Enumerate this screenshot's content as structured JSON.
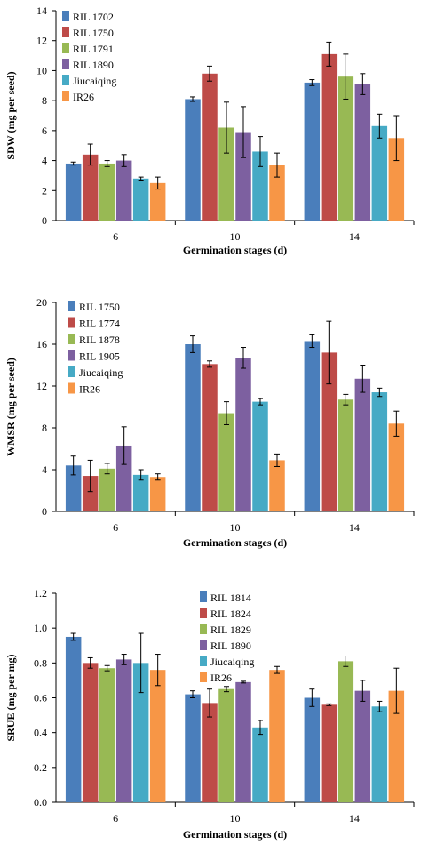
{
  "chart_data": [
    {
      "type": "bar",
      "ylabel": "SDW (mg per seed)",
      "xlabel": "Germination  stages (d)",
      "ylim": [
        0,
        14
      ],
      "yticks": [
        0,
        2,
        4,
        6,
        8,
        10,
        12,
        14
      ],
      "categories": [
        "6",
        "10",
        "14"
      ],
      "grid": false,
      "legend_position": "top-left",
      "series": [
        {
          "name": "RIL  1702",
          "color": "#4a7ebb",
          "values": [
            3.8,
            8.1,
            9.2
          ],
          "errors": [
            0.1,
            0.15,
            0.2
          ]
        },
        {
          "name": "RIL  1750",
          "color": "#be4b48",
          "values": [
            4.4,
            9.8,
            11.1
          ],
          "errors": [
            0.7,
            0.5,
            0.8
          ]
        },
        {
          "name": "RIL  1791",
          "color": "#98b954",
          "values": [
            3.8,
            6.2,
            9.6
          ],
          "errors": [
            0.2,
            1.7,
            1.5
          ]
        },
        {
          "name": "RIL  1890",
          "color": "#7d60a0",
          "values": [
            4.0,
            5.9,
            9.1
          ],
          "errors": [
            0.4,
            1.7,
            0.7
          ]
        },
        {
          "name": "Jiucaiqing",
          "color": "#46aac5",
          "values": [
            2.8,
            4.6,
            6.3
          ],
          "errors": [
            0.1,
            1.0,
            0.8
          ]
        },
        {
          "name": "IR26",
          "color": "#f79646",
          "values": [
            2.5,
            3.7,
            5.5
          ],
          "errors": [
            0.4,
            0.8,
            1.5
          ]
        }
      ]
    },
    {
      "type": "bar",
      "ylabel": "WMSR (mg per seed)",
      "xlabel": "Germination  stages (d)",
      "ylim": [
        0,
        20
      ],
      "yticks": [
        0,
        4,
        8,
        12,
        16,
        20
      ],
      "categories": [
        "6",
        "10",
        "14"
      ],
      "grid": false,
      "legend_position": "top-left",
      "series": [
        {
          "name": "RIL  1750",
          "color": "#4a7ebb",
          "values": [
            4.4,
            16.0,
            16.3
          ],
          "errors": [
            0.9,
            0.8,
            0.6
          ]
        },
        {
          "name": "RIL  1774",
          "color": "#be4b48",
          "values": [
            3.4,
            14.1,
            15.2
          ],
          "errors": [
            1.5,
            0.3,
            3.0
          ]
        },
        {
          "name": "RIL  1878",
          "color": "#98b954",
          "values": [
            4.1,
            9.4,
            10.7
          ],
          "errors": [
            0.5,
            1.1,
            0.5
          ]
        },
        {
          "name": "RIL  1905",
          "color": "#7d60a0",
          "values": [
            6.3,
            14.7,
            12.7
          ],
          "errors": [
            1.8,
            1.0,
            1.3
          ]
        },
        {
          "name": "Jiucaiqing",
          "color": "#46aac5",
          "values": [
            3.5,
            10.5,
            11.4
          ],
          "errors": [
            0.5,
            0.3,
            0.4
          ]
        },
        {
          "name": "IR26",
          "color": "#f79646",
          "values": [
            3.3,
            4.9,
            8.4
          ],
          "errors": [
            0.3,
            0.6,
            1.2
          ]
        }
      ]
    },
    {
      "type": "bar",
      "ylabel": "SRUE (mg per mg)",
      "xlabel": "Germination  stages (d)",
      "ylim": [
        0,
        1.2
      ],
      "yticks": [
        "0.0",
        "0.2",
        "0.4",
        "0.6",
        "0.8",
        "1.0",
        "1.2"
      ],
      "categories": [
        "6",
        "10",
        "14"
      ],
      "grid": false,
      "legend_position": "top-right",
      "series": [
        {
          "name": "RIL  1814",
          "color": "#4a7ebb",
          "values": [
            0.95,
            0.62,
            0.6
          ],
          "errors": [
            0.02,
            0.02,
            0.05
          ]
        },
        {
          "name": "RIL  1824",
          "color": "#be4b48",
          "values": [
            0.8,
            0.57,
            0.56
          ],
          "errors": [
            0.03,
            0.08,
            0.005
          ]
        },
        {
          "name": "RIL  1829",
          "color": "#98b954",
          "values": [
            0.77,
            0.65,
            0.81
          ],
          "errors": [
            0.015,
            0.015,
            0.03
          ]
        },
        {
          "name": "RIL  1890",
          "color": "#7d60a0",
          "values": [
            0.82,
            0.69,
            0.64
          ],
          "errors": [
            0.03,
            0.005,
            0.06
          ]
        },
        {
          "name": "Jiucaiqing",
          "color": "#46aac5",
          "values": [
            0.8,
            0.43,
            0.55
          ],
          "errors": [
            0.17,
            0.04,
            0.03
          ]
        },
        {
          "name": "IR26",
          "color": "#f79646",
          "values": [
            0.76,
            0.76,
            0.64
          ],
          "errors": [
            0.09,
            0.02,
            0.13
          ]
        }
      ]
    }
  ]
}
